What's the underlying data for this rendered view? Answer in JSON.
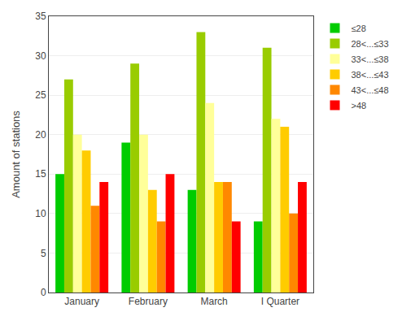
{
  "chart_data": {
    "type": "bar",
    "categories": [
      "January",
      "February",
      "March",
      "I Quarter"
    ],
    "series": [
      {
        "name": "≤28",
        "color": "#00cc00",
        "values": [
          15,
          19,
          13,
          9
        ]
      },
      {
        "name": "28<...≤33",
        "color": "#99cc00",
        "values": [
          27,
          29,
          33,
          31
        ]
      },
      {
        "name": "33<...≤38",
        "color": "#ffff99",
        "values": [
          20,
          20,
          24,
          22
        ]
      },
      {
        "name": "38<...≤43",
        "color": "#ffcc00",
        "values": [
          18,
          13,
          14,
          21
        ]
      },
      {
        "name": "43<...≤48",
        "color": "#ff8800",
        "values": [
          11,
          9,
          14,
          10
        ]
      },
      {
        "name": ">48",
        "color": "#ff0000",
        "values": [
          14,
          15,
          9,
          14
        ]
      }
    ],
    "ylabel": "Amount of stations",
    "ylim": [
      0,
      35
    ],
    "yticks": [
      0,
      5,
      10,
      15,
      20,
      25,
      30,
      35
    ],
    "grid": true,
    "legend": "upper right"
  }
}
